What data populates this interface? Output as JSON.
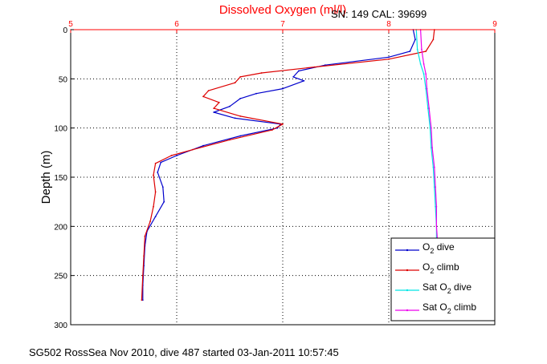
{
  "chart_data": {
    "type": "line",
    "title": "Dissolved Oxygen (ml/l)",
    "subtitle": "SN: 149  CAL: 39699",
    "ylabel": "Depth (m)",
    "xlim": [
      5,
      9
    ],
    "ylim": [
      0,
      300
    ],
    "y_inverted": true,
    "x_axis_position": "top",
    "xticks": [
      "5",
      "6",
      "7",
      "8",
      "9"
    ],
    "yticks": [
      "0",
      "50",
      "100",
      "150",
      "200",
      "250",
      "300"
    ],
    "grid": "dotted",
    "legend_placement": "bottom-right",
    "footer": "SG502 RossSea Nov 2010, dive 487 started 03-Jan-2011 10:57:45",
    "series": [
      {
        "name": "O2 dive",
        "legend_main": "O",
        "legend_sub": "2",
        "legend_rest": " dive",
        "color": "#0000cc",
        "points": [
          [
            8.23,
            0
          ],
          [
            8.25,
            10
          ],
          [
            8.2,
            22
          ],
          [
            8.0,
            28
          ],
          [
            7.4,
            36
          ],
          [
            7.15,
            42
          ],
          [
            7.1,
            48
          ],
          [
            7.2,
            52
          ],
          [
            7.0,
            60
          ],
          [
            6.75,
            65
          ],
          [
            6.6,
            70
          ],
          [
            6.5,
            78
          ],
          [
            6.35,
            84
          ],
          [
            6.55,
            90
          ],
          [
            6.98,
            96
          ],
          [
            6.95,
            100
          ],
          [
            6.6,
            108
          ],
          [
            6.25,
            118
          ],
          [
            6.0,
            128
          ],
          [
            5.85,
            135
          ],
          [
            5.82,
            145
          ],
          [
            5.87,
            160
          ],
          [
            5.88,
            175
          ],
          [
            5.8,
            190
          ],
          [
            5.72,
            205
          ],
          [
            5.7,
            220
          ],
          [
            5.69,
            240
          ],
          [
            5.68,
            260
          ],
          [
            5.68,
            275
          ]
        ]
      },
      {
        "name": "O2 climb",
        "legend_main": "O",
        "legend_sub": "2",
        "legend_rest": " climb",
        "color": "#dd0000",
        "points": [
          [
            8.43,
            0
          ],
          [
            8.42,
            10
          ],
          [
            8.35,
            22
          ],
          [
            8.0,
            30
          ],
          [
            7.3,
            38
          ],
          [
            6.8,
            44
          ],
          [
            6.6,
            48
          ],
          [
            6.55,
            54
          ],
          [
            6.3,
            62
          ],
          [
            6.25,
            68
          ],
          [
            6.4,
            74
          ],
          [
            6.35,
            80
          ],
          [
            6.6,
            88
          ],
          [
            7.0,
            96
          ],
          [
            6.9,
            102
          ],
          [
            6.5,
            112
          ],
          [
            6.15,
            122
          ],
          [
            5.95,
            128
          ],
          [
            5.8,
            136
          ],
          [
            5.78,
            148
          ],
          [
            5.8,
            165
          ],
          [
            5.78,
            180
          ],
          [
            5.75,
            195
          ],
          [
            5.7,
            210
          ],
          [
            5.69,
            230
          ],
          [
            5.68,
            250
          ],
          [
            5.67,
            275
          ]
        ]
      },
      {
        "name": "Sat O2 dive",
        "legend_main": "Sat O",
        "legend_sub": "2",
        "legend_rest": " dive",
        "color": "#00e5e5",
        "points": [
          [
            8.26,
            0
          ],
          [
            8.27,
            20
          ],
          [
            8.3,
            35
          ],
          [
            8.33,
            45
          ],
          [
            8.35,
            60
          ],
          [
            8.37,
            80
          ],
          [
            8.39,
            100
          ],
          [
            8.4,
            120
          ],
          [
            8.42,
            140
          ],
          [
            8.43,
            160
          ],
          [
            8.44,
            180
          ],
          [
            8.45,
            200
          ],
          [
            8.45,
            215
          ]
        ]
      },
      {
        "name": "Sat O2 climb",
        "legend_main": "Sat O",
        "legend_sub": "2",
        "legend_rest": " climb",
        "color": "#ee00ee",
        "points": [
          [
            8.3,
            0
          ],
          [
            8.31,
            20
          ],
          [
            8.33,
            35
          ],
          [
            8.35,
            45
          ],
          [
            8.36,
            60
          ],
          [
            8.38,
            80
          ],
          [
            8.4,
            100
          ],
          [
            8.41,
            120
          ],
          [
            8.43,
            140
          ],
          [
            8.44,
            160
          ],
          [
            8.45,
            180
          ],
          [
            8.45,
            200
          ],
          [
            8.46,
            215
          ]
        ]
      }
    ]
  }
}
